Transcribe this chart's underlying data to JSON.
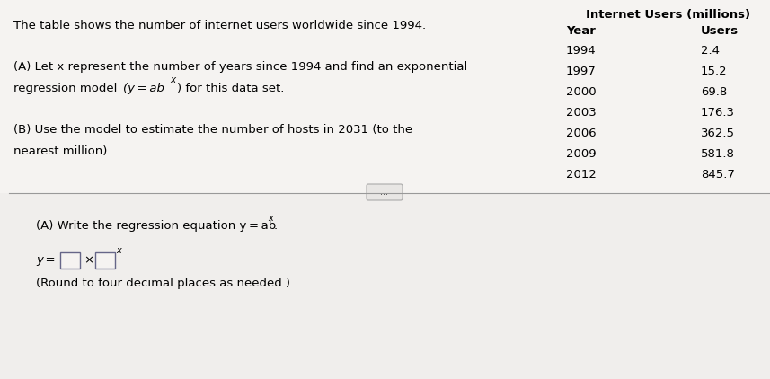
{
  "bg_color": "#f0eeec",
  "fontsize_main": 9.5,
  "fontsize_table": 9.5,
  "table_data": [
    {
      "year": "1994",
      "users": "2.4"
    },
    {
      "year": "1997",
      "users": "15.2"
    },
    {
      "year": "2000",
      "users": "69.8"
    },
    {
      "year": "2003",
      "users": "176.3"
    },
    {
      "year": "2006",
      "users": "362.5"
    },
    {
      "year": "2009",
      "users": "581.8"
    },
    {
      "year": "2012",
      "users": "845.7"
    }
  ]
}
